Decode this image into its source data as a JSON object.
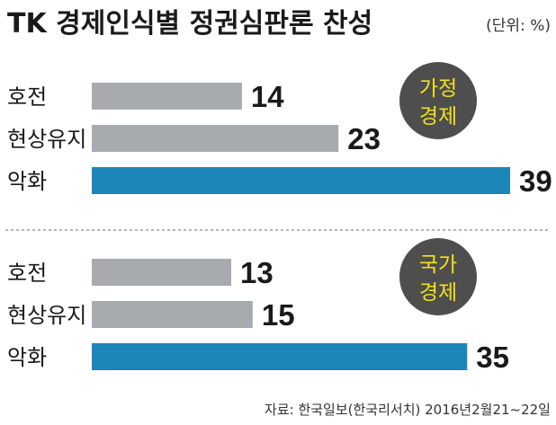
{
  "header": {
    "title": "TK 경제인식별 정권심판론 찬성",
    "unit": "(단위: %)"
  },
  "source": "자료: 한국일보(한국리서치) 2016년2월21~22일",
  "colors": {
    "neutral_bar": "#a7abaf",
    "highlight_bar": "#1c86b8",
    "badge_fill": "#4e4e4e",
    "badge_text": "#f2e21a"
  },
  "chart_data": [
    {
      "type": "bar",
      "orientation": "horizontal",
      "panel_label": [
        "가정",
        "경제"
      ],
      "categories": [
        "호전",
        "현상유지",
        "악화"
      ],
      "values": [
        14,
        23,
        39
      ],
      "highlight": [
        false,
        false,
        true
      ],
      "unit": "%",
      "xlim": [
        0,
        39
      ]
    },
    {
      "type": "bar",
      "orientation": "horizontal",
      "panel_label": [
        "국가",
        "경제"
      ],
      "categories": [
        "호전",
        "현상유지",
        "악화"
      ],
      "values": [
        13,
        15,
        35
      ],
      "highlight": [
        false,
        false,
        true
      ],
      "unit": "%",
      "xlim": [
        0,
        39
      ]
    }
  ]
}
